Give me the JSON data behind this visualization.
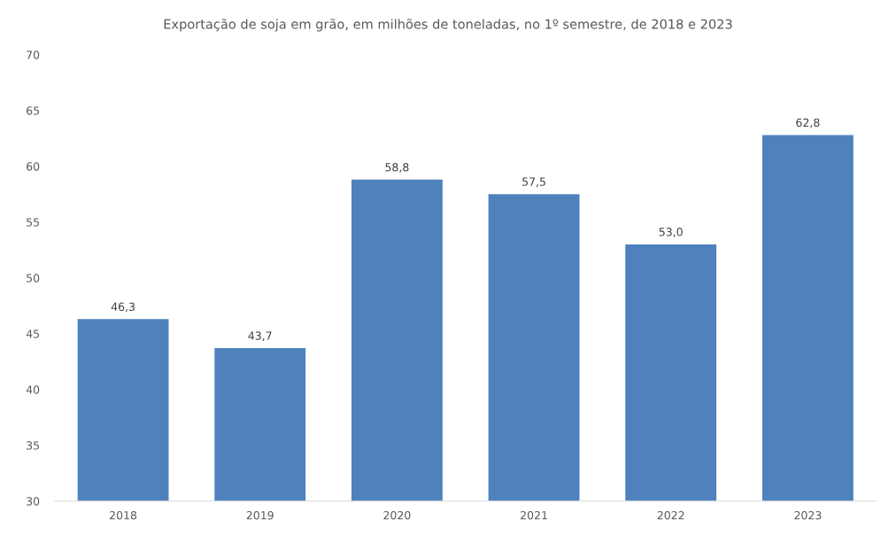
{
  "chart_data": {
    "type": "bar",
    "title": "Exportação de soja em grão, em milhões de toneladas, no 1º semestre, de 2018 e 2023",
    "categories": [
      "2018",
      "2019",
      "2020",
      "2021",
      "2022",
      "2023"
    ],
    "values": [
      46.3,
      43.7,
      58.8,
      57.5,
      53.0,
      62.8
    ],
    "value_labels": [
      "46,3",
      "43,7",
      "58,8",
      "57,5",
      "53,0",
      "62,8"
    ],
    "color": "#4f81bd",
    "ylim": [
      30,
      70
    ],
    "yticks": [
      30,
      35,
      40,
      45,
      50,
      55,
      60,
      65,
      70
    ],
    "grid": false,
    "legend": false
  }
}
